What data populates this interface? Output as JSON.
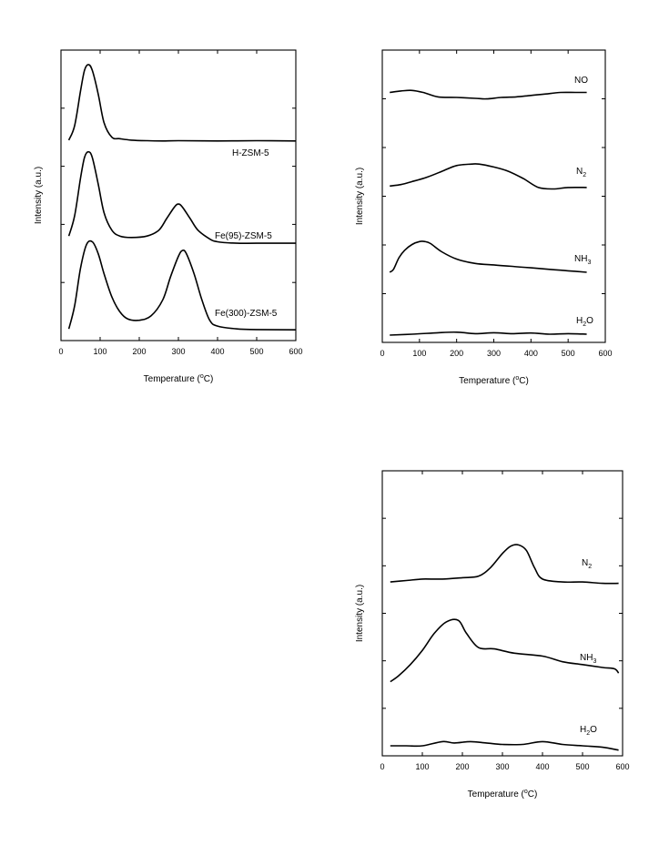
{
  "chart_data": [
    {
      "type": "line",
      "title": "",
      "xlabel": "Temperature (°C)",
      "ylabel": "Intensity (a.u.)",
      "xlim": [
        0,
        600
      ],
      "xticks": [
        0,
        100,
        200,
        300,
        400,
        500,
        600
      ],
      "ylim": [
        0,
        10
      ],
      "grid": false,
      "legend": "labels beside curves",
      "series": [
        {
          "name": "H-ZSM-5",
          "x": [
            20,
            35,
            50,
            60,
            70,
            80,
            95,
            110,
            130,
            150,
            180,
            220,
            260,
            300,
            400,
            500,
            600
          ],
          "y": [
            6.9,
            7.4,
            8.6,
            9.3,
            9.5,
            9.3,
            8.5,
            7.5,
            7.0,
            6.95,
            6.9,
            6.88,
            6.87,
            6.88,
            6.87,
            6.88,
            6.87
          ]
        },
        {
          "name": "Fe(95)-ZSM-5",
          "x": [
            20,
            35,
            50,
            60,
            70,
            80,
            95,
            110,
            130,
            150,
            180,
            220,
            250,
            270,
            290,
            300,
            310,
            330,
            350,
            380,
            400,
            450,
            500,
            600
          ],
          "y": [
            3.6,
            4.3,
            5.6,
            6.3,
            6.5,
            6.3,
            5.4,
            4.4,
            3.8,
            3.6,
            3.55,
            3.6,
            3.8,
            4.2,
            4.6,
            4.7,
            4.6,
            4.2,
            3.8,
            3.5,
            3.4,
            3.35,
            3.35,
            3.35
          ]
        },
        {
          "name": "Fe(300)-ZSM-5",
          "x": [
            20,
            35,
            50,
            65,
            80,
            95,
            110,
            130,
            150,
            170,
            200,
            230,
            260,
            280,
            300,
            310,
            320,
            340,
            360,
            380,
            400,
            450,
            500,
            600
          ],
          "y": [
            0.4,
            1.2,
            2.5,
            3.3,
            3.4,
            3.0,
            2.3,
            1.5,
            1.0,
            0.75,
            0.7,
            0.85,
            1.4,
            2.2,
            2.9,
            3.1,
            3.0,
            2.3,
            1.4,
            0.7,
            0.5,
            0.4,
            0.38,
            0.37
          ]
        }
      ]
    },
    {
      "type": "line",
      "title": "",
      "xlabel": "Temperature (°C)",
      "ylabel": "Intensity (a.u.)",
      "xlim": [
        0,
        600
      ],
      "xticks": [
        0,
        100,
        200,
        300,
        400,
        500,
        600
      ],
      "ylim": [
        0,
        10
      ],
      "grid": false,
      "legend": "labels beside curves",
      "series": [
        {
          "name": "NO",
          "x": [
            20,
            50,
            80,
            110,
            150,
            200,
            250,
            280,
            320,
            360,
            400,
            440,
            480,
            520,
            550
          ],
          "y": [
            8.55,
            8.6,
            8.62,
            8.55,
            8.4,
            8.38,
            8.35,
            8.33,
            8.38,
            8.4,
            8.45,
            8.5,
            8.55,
            8.55,
            8.55
          ]
        },
        {
          "name": "N2",
          "x": [
            20,
            50,
            80,
            120,
            160,
            200,
            240,
            260,
            300,
            340,
            380,
            420,
            460,
            500,
            550
          ],
          "y": [
            5.35,
            5.4,
            5.5,
            5.65,
            5.85,
            6.05,
            6.1,
            6.1,
            6.0,
            5.85,
            5.6,
            5.3,
            5.25,
            5.3,
            5.3
          ]
        },
        {
          "name": "NH3",
          "x": [
            20,
            30,
            45,
            60,
            80,
            100,
            115,
            130,
            160,
            200,
            250,
            300,
            350,
            400,
            450,
            500,
            550
          ],
          "y": [
            2.4,
            2.5,
            2.9,
            3.15,
            3.35,
            3.45,
            3.45,
            3.38,
            3.1,
            2.85,
            2.7,
            2.65,
            2.6,
            2.55,
            2.5,
            2.45,
            2.4
          ]
        },
        {
          "name": "H2O",
          "x": [
            20,
            80,
            150,
            200,
            250,
            300,
            350,
            400,
            450,
            500,
            550
          ],
          "y": [
            0.25,
            0.28,
            0.33,
            0.35,
            0.3,
            0.33,
            0.3,
            0.32,
            0.28,
            0.3,
            0.28
          ]
        }
      ]
    },
    {
      "type": "line",
      "title": "",
      "xlabel": "Temperature (°C)",
      "ylabel": "Intensity (a.u.)",
      "xlim": [
        0,
        600
      ],
      "xticks": [
        0,
        100,
        200,
        300,
        400,
        500,
        600
      ],
      "ylim": [
        0,
        10
      ],
      "grid": false,
      "legend": "labels beside curves",
      "series": [
        {
          "name": "N2",
          "x": [
            20,
            60,
            100,
            150,
            200,
            240,
            270,
            300,
            320,
            340,
            360,
            380,
            400,
            450,
            500,
            550,
            590
          ],
          "y": [
            6.1,
            6.15,
            6.2,
            6.2,
            6.25,
            6.3,
            6.6,
            7.1,
            7.35,
            7.4,
            7.2,
            6.6,
            6.2,
            6.1,
            6.1,
            6.05,
            6.05
          ]
        },
        {
          "name": "NH3",
          "x": [
            20,
            40,
            70,
            100,
            130,
            160,
            190,
            210,
            240,
            280,
            330,
            400,
            450,
            500,
            550,
            580,
            590
          ],
          "y": [
            2.6,
            2.8,
            3.2,
            3.7,
            4.3,
            4.7,
            4.75,
            4.3,
            3.8,
            3.75,
            3.6,
            3.5,
            3.3,
            3.2,
            3.1,
            3.05,
            2.9
          ]
        },
        {
          "name": "H2O",
          "x": [
            20,
            60,
            100,
            150,
            180,
            220,
            260,
            300,
            350,
            400,
            450,
            500,
            550,
            590
          ],
          "y": [
            0.35,
            0.35,
            0.35,
            0.5,
            0.45,
            0.5,
            0.45,
            0.4,
            0.4,
            0.5,
            0.4,
            0.35,
            0.3,
            0.2
          ]
        }
      ]
    }
  ],
  "panels": [
    {
      "xlabel_pre": "Temperature (",
      "xlabel_sup": "o",
      "xlabel_post": "C)",
      "ylabel": "Intensity (a.u.)",
      "labels": [
        {
          "main": "H-ZSM-5",
          "sub": ""
        },
        {
          "main": "Fe(95)-ZSM-5",
          "sub": ""
        },
        {
          "main": "Fe(300)-ZSM-5",
          "sub": ""
        }
      ]
    },
    {
      "xlabel_pre": "Temperature (",
      "xlabel_sup": "o",
      "xlabel_post": "C)",
      "ylabel": "Intensity (a.u.)",
      "labels": [
        {
          "main": "NO",
          "sub": ""
        },
        {
          "main": "N",
          "sub": "2"
        },
        {
          "main": "NH",
          "sub": "3"
        },
        {
          "main": "H",
          "sub": "2",
          "tail": "O"
        }
      ]
    },
    {
      "xlabel_pre": "Temperature (",
      "xlabel_sup": "o",
      "xlabel_post": "C)",
      "ylabel": "Intensity (a.u.)",
      "labels": [
        {
          "main": "N",
          "sub": "2"
        },
        {
          "main": "NH",
          "sub": "3"
        },
        {
          "main": "H",
          "sub": "2",
          "tail": "O"
        }
      ]
    }
  ]
}
